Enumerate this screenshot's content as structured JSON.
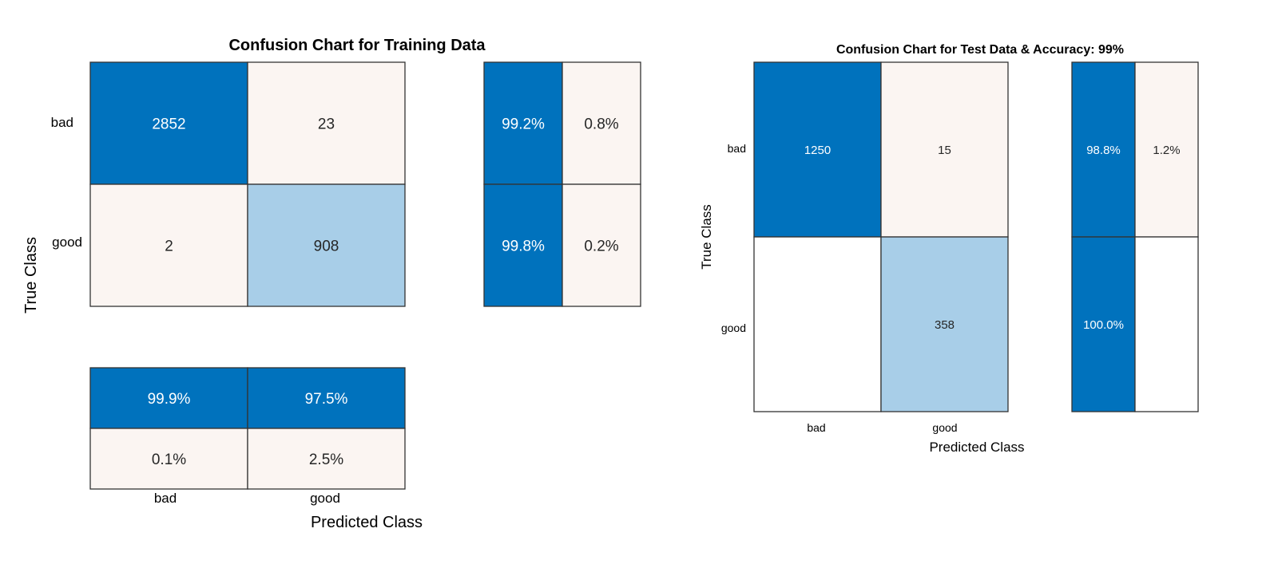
{
  "chart_data": [
    {
      "type": "heatmap",
      "title": "Confusion Chart for Training Data",
      "xlabel": "Predicted Class",
      "ylabel": "True Class",
      "classes": [
        "bad",
        "good"
      ],
      "matrix": [
        [
          "2852",
          "23"
        ],
        [
          "2",
          "908"
        ]
      ],
      "row_summary": [
        [
          "99.2%",
          "0.8%"
        ],
        [
          "99.8%",
          "0.2%"
        ]
      ],
      "column_summary": [
        [
          "99.9%",
          "97.5%"
        ],
        [
          "0.1%",
          "2.5%"
        ]
      ],
      "grid": false,
      "legend": "none"
    },
    {
      "type": "heatmap",
      "title": "Confusion Chart for Test Data & Accuracy: 99%",
      "xlabel": "Predicted Class",
      "ylabel": "True Class",
      "classes": [
        "bad",
        "good"
      ],
      "matrix": [
        [
          "1250",
          "15"
        ],
        [
          "",
          "358"
        ]
      ],
      "row_summary": [
        [
          "98.8%",
          "1.2%"
        ],
        [
          "100.0%",
          ""
        ]
      ],
      "grid": false,
      "legend": "none"
    }
  ],
  "colors": {
    "correct_dark": "#0072bd",
    "correct_light": "#a8cee8",
    "error_light": "#fbf5f2",
    "empty": "#ffffff",
    "border": "#333333",
    "text_dark": "#262626",
    "text_light": "#ffffff"
  }
}
